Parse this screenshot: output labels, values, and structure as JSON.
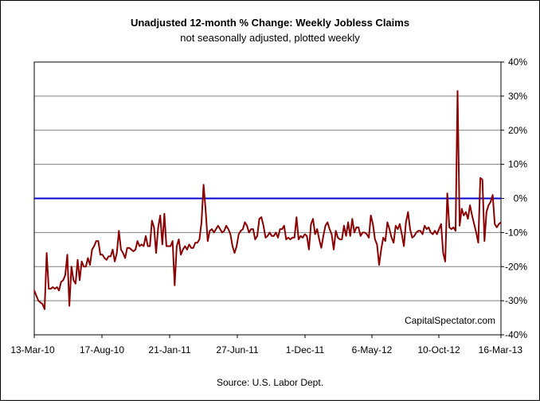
{
  "chart_data": {
    "type": "line",
    "title": "Unadjusted 12-month %  Change: Weekly Jobless Claims",
    "subtitle": "not seasonally adjusted, plotted weekly",
    "source": "Source: U.S. Labor Dept.",
    "watermark": "CapitalSpectator.com",
    "xlabel": "",
    "ylabel": "",
    "ylim": [
      -40,
      40
    ],
    "yticks": [
      40,
      30,
      20,
      10,
      0,
      -10,
      -20,
      -30,
      -40
    ],
    "ytick_labels": [
      "40%",
      "30%",
      "20%",
      "10%",
      "0%",
      "-10%",
      "-20%",
      "-30%",
      "-40%"
    ],
    "xtick_labels": [
      "13-Mar-10",
      "17-Aug-10",
      "21-Jan-11",
      "27-Jun-11",
      "1-Dec-11",
      "6-May-12",
      "10-Oct-12",
      "16-Mar-13"
    ],
    "x_start_label": "13-Mar-10",
    "x_end_label": "16-Mar-13",
    "grid": true,
    "reference_line": {
      "value": 0,
      "color": "#0000cc"
    },
    "series": [
      {
        "color": "#8b0000",
        "values": [
          -27,
          -28.5,
          -30,
          -30.5,
          -31,
          -32.5,
          -16,
          -26.5,
          -26.5,
          -26,
          -26.5,
          -26,
          -27,
          -24.5,
          -24,
          -22.5,
          -16.5,
          -31.5,
          -20,
          -24,
          -25,
          -18,
          -24,
          -18.5,
          -20,
          -20,
          -17.5,
          -19.5,
          -15,
          -14,
          -12.5,
          -12.5,
          -16.5,
          -16.5,
          -17.5,
          -18,
          -17,
          -17,
          -15,
          -18.5,
          -16,
          -9.5,
          -15,
          -16,
          -17.5,
          -14.5,
          -14.5,
          -15,
          -15.5,
          -15,
          -12.5,
          -14,
          -13.5,
          -14,
          -11,
          -14,
          -14,
          -6.5,
          -8.5,
          -16,
          -8.5,
          -5,
          -13.5,
          -4.5,
          -14,
          -14,
          -14,
          -12.5,
          -25.5,
          -14,
          -12,
          -16.5,
          -15,
          -14,
          -15,
          -13.5,
          -14.5,
          -14.5,
          -13,
          -13,
          -12,
          -7,
          4,
          -3.5,
          -12.5,
          -9.5,
          -9,
          -10,
          -9,
          -8,
          -9,
          -10,
          -9.5,
          -8,
          -9,
          -10.5,
          -14,
          -16,
          -14,
          -10.5,
          -9.5,
          -9,
          -7,
          -8,
          -10,
          -9,
          -9,
          -12,
          -11,
          -6,
          -5.5,
          -8,
          -11.5,
          -11,
          -10,
          -11,
          -11,
          -10,
          -11.5,
          -9,
          -9,
          -8,
          -12,
          -11.5,
          -12,
          -11.5,
          -11.5,
          -5.5,
          -12,
          -11,
          -11.5,
          -10.5,
          -11,
          -15,
          -7.5,
          -6,
          -10.5,
          -9,
          -12,
          -14.5,
          -11,
          -8,
          -7,
          -9,
          -10.5,
          -15,
          -9.5,
          -11.5,
          -12,
          -12,
          -8,
          -11,
          -7,
          -11,
          -6,
          -10,
          -8.5,
          -8.5,
          -11,
          -10,
          -10,
          -10.5,
          -11.5,
          -5,
          -7.5,
          -12,
          -13.5,
          -19.5,
          -15,
          -11.5,
          -12.5,
          -7,
          -9,
          -11.5,
          -13,
          -8,
          -9,
          -7.5,
          -10.5,
          -14,
          -7,
          -4,
          -9,
          -11.5,
          -11,
          -10,
          -9.5,
          -9.5,
          -10.5,
          -8,
          -9,
          -8.5,
          -10,
          -10.5,
          -9.5,
          -10.5,
          -9,
          -7.5,
          -16,
          -18.5,
          1.5,
          -8.5,
          -9,
          -8.5,
          -9.5,
          31.5,
          -8,
          -3,
          -5,
          -4,
          -6,
          -2,
          -5,
          -7.5,
          -10,
          -13,
          6,
          5.5,
          -12.5,
          -4,
          -2,
          -1,
          1,
          -7.5,
          -8.5,
          -7.5,
          -7
        ]
      }
    ]
  }
}
